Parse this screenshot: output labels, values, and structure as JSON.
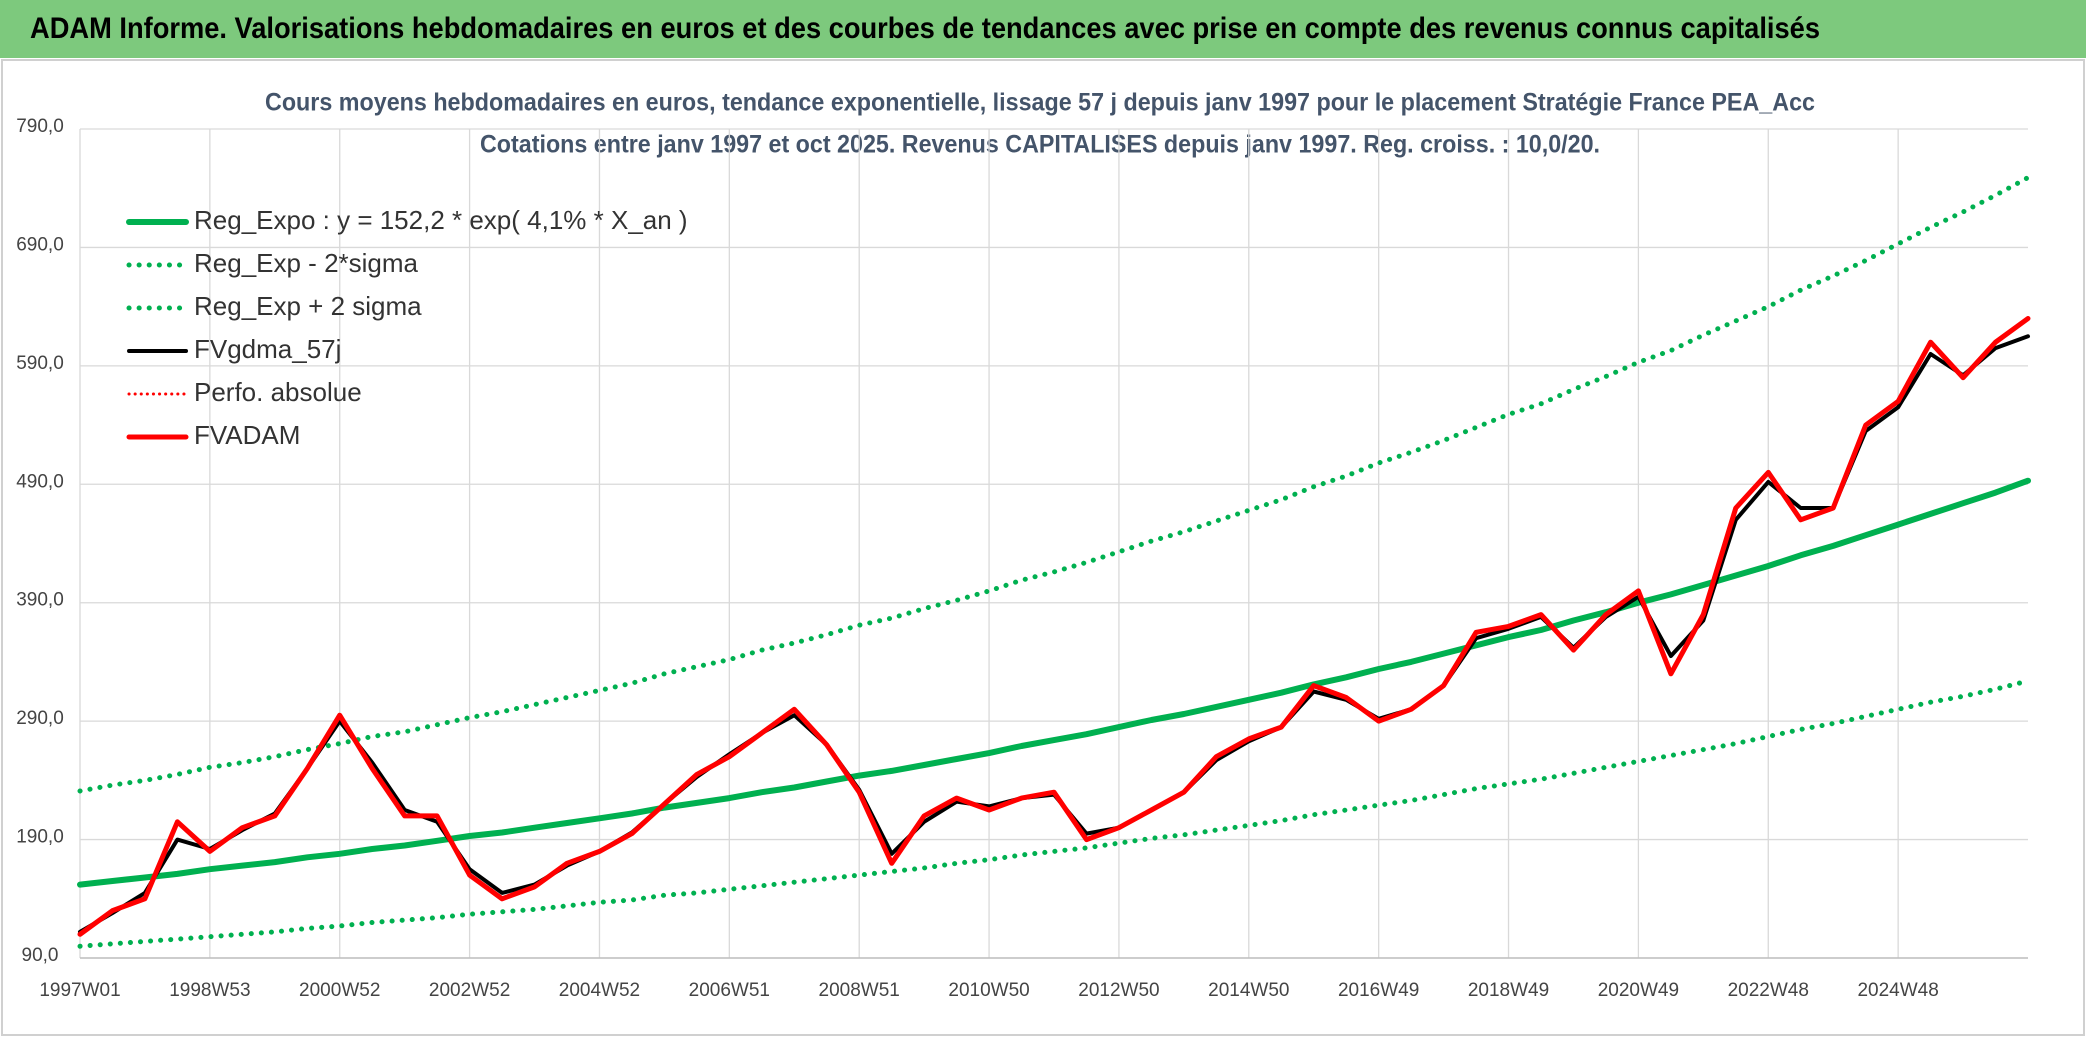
{
  "header": {
    "title": "ADAM Informe. Valorisations hebdomadaires en euros et des courbes de tendances avec prise en compte des revenus connus capitalisés"
  },
  "chart_data": {
    "type": "line",
    "title": "Cours moyens hebdomadaires en euros, tendance exponentielle, lissage 57 j depuis janv 1997 pour le placement Stratégie France PEA_Acc",
    "subtitle": "Cotations entre janv 1997 et oct 2025. Revenus CAPITALISES depuis janv 1997. Reg. croiss. : 10,0/20.",
    "categories": [
      "1997W01",
      null,
      null,
      null,
      "1998W53",
      null,
      null,
      null,
      "2000W52",
      null,
      null,
      null,
      "2002W52",
      null,
      null,
      null,
      "2004W52",
      null,
      null,
      null,
      "2006W51",
      null,
      null,
      null,
      "2008W51",
      null,
      null,
      null,
      "2010W50",
      null,
      null,
      null,
      "2012W50",
      null,
      null,
      null,
      "2014W50",
      null,
      null,
      null,
      "2016W49",
      null,
      null,
      null,
      "2018W49",
      null,
      null,
      null,
      "2020W49",
      null,
      null,
      null,
      "2022W48",
      null,
      null,
      null,
      "2024W48",
      null,
      null,
      null,
      null
    ],
    "ylim": [
      90,
      790
    ],
    "yticks": [
      {
        "value": 90,
        "label": "90,0"
      },
      {
        "value": 190,
        "label": "190,0"
      },
      {
        "value": 290,
        "label": "290,0"
      },
      {
        "value": 390,
        "label": "390,0"
      },
      {
        "value": 490,
        "label": "490,0"
      },
      {
        "value": 590,
        "label": "590,0"
      },
      {
        "value": 690,
        "label": "690,0"
      },
      {
        "value": 790,
        "label": "790,0"
      }
    ],
    "grid": true,
    "legend": "top-left",
    "series": [
      {
        "name": "Reg_Expo : y = 152,2 * exp( 4,1% *  X_an )",
        "color": "#00b050",
        "dash": "solid",
        "width": 6,
        "values": [
          152,
          155,
          158,
          161,
          165,
          168,
          171,
          175,
          178,
          182,
          185,
          189,
          193,
          196,
          200,
          204,
          208,
          212,
          217,
          221,
          225,
          230,
          234,
          239,
          244,
          248,
          253,
          258,
          263,
          269,
          274,
          279,
          285,
          291,
          296,
          302,
          308,
          314,
          321,
          327,
          334,
          340,
          347,
          354,
          361,
          367,
          375,
          382,
          390,
          397,
          405,
          413,
          421,
          430,
          438,
          447,
          456,
          465,
          474,
          483,
          493
        ]
      },
      {
        "name": "Reg_Exp - 2*sigma",
        "color": "#00b050",
        "dash": "dotted",
        "width": 5,
        "values": [
          100,
          102,
          104,
          106,
          108,
          110,
          112,
          115,
          117,
          120,
          122,
          124,
          127,
          129,
          131,
          134,
          137,
          139,
          143,
          145,
          148,
          151,
          154,
          157,
          160,
          163,
          166,
          170,
          173,
          177,
          180,
          183,
          187,
          191,
          194,
          198,
          202,
          206,
          211,
          215,
          219,
          223,
          228,
          233,
          237,
          241,
          246,
          251,
          256,
          261,
          266,
          271,
          277,
          283,
          288,
          294,
          300,
          306,
          311,
          317,
          324
        ]
      },
      {
        "name": "Reg_Exp + 2 sigma",
        "color": "#00b050",
        "dash": "dotted",
        "width": 5,
        "values": [
          231,
          236,
          240,
          245,
          251,
          255,
          260,
          266,
          271,
          277,
          281,
          287,
          293,
          298,
          304,
          310,
          316,
          322,
          330,
          336,
          342,
          350,
          356,
          363,
          371,
          377,
          385,
          392,
          400,
          409,
          416,
          424,
          433,
          442,
          450,
          459,
          468,
          477,
          488,
          497,
          508,
          517,
          527,
          538,
          549,
          558,
          570,
          581,
          593,
          603,
          616,
          628,
          640,
          654,
          666,
          679,
          693,
          707,
          720,
          734,
          749
        ]
      },
      {
        "name": "FVgdma_57j",
        "color": "#000000",
        "dash": "solid",
        "width": 4,
        "values": [
          112,
          128,
          145,
          190,
          182,
          198,
          212,
          250,
          290,
          255,
          215,
          205,
          165,
          145,
          152,
          168,
          180,
          196,
          220,
          243,
          262,
          280,
          295,
          270,
          232,
          178,
          205,
          222,
          218,
          225,
          228,
          195,
          200,
          215,
          230,
          257,
          273,
          285,
          315,
          308,
          292,
          300,
          320,
          360,
          368,
          378,
          352,
          378,
          395,
          345,
          375,
          460,
          492,
          470,
          470,
          535,
          555,
          600,
          582,
          605,
          615
        ]
      },
      {
        "name": "Perfo. absolue",
        "color": "#ff0000",
        "dash": "dotted",
        "width": 3,
        "values": [
          110,
          130,
          140,
          205,
          180,
          200,
          210,
          250,
          295,
          250,
          210,
          210,
          160,
          140,
          150,
          170,
          180,
          195,
          220,
          245,
          260,
          280,
          300,
          270,
          230,
          170,
          210,
          225,
          215,
          225,
          230,
          190,
          200,
          215,
          230,
          260,
          275,
          285,
          320,
          310,
          290,
          300,
          320,
          365,
          370,
          380,
          350,
          380,
          400,
          330,
          380,
          470,
          500,
          460,
          470,
          540,
          560,
          610,
          580,
          610,
          630
        ]
      },
      {
        "name": "FVADAM",
        "color": "#ff0000",
        "dash": "solid",
        "width": 5,
        "values": [
          110,
          130,
          140,
          205,
          180,
          200,
          210,
          250,
          295,
          250,
          210,
          210,
          160,
          140,
          150,
          170,
          180,
          195,
          220,
          245,
          260,
          280,
          300,
          270,
          230,
          170,
          210,
          225,
          215,
          225,
          230,
          190,
          200,
          215,
          230,
          260,
          275,
          285,
          320,
          310,
          290,
          300,
          320,
          365,
          370,
          380,
          350,
          380,
          400,
          330,
          380,
          470,
          500,
          460,
          470,
          540,
          560,
          610,
          580,
          610,
          630
        ]
      }
    ]
  }
}
